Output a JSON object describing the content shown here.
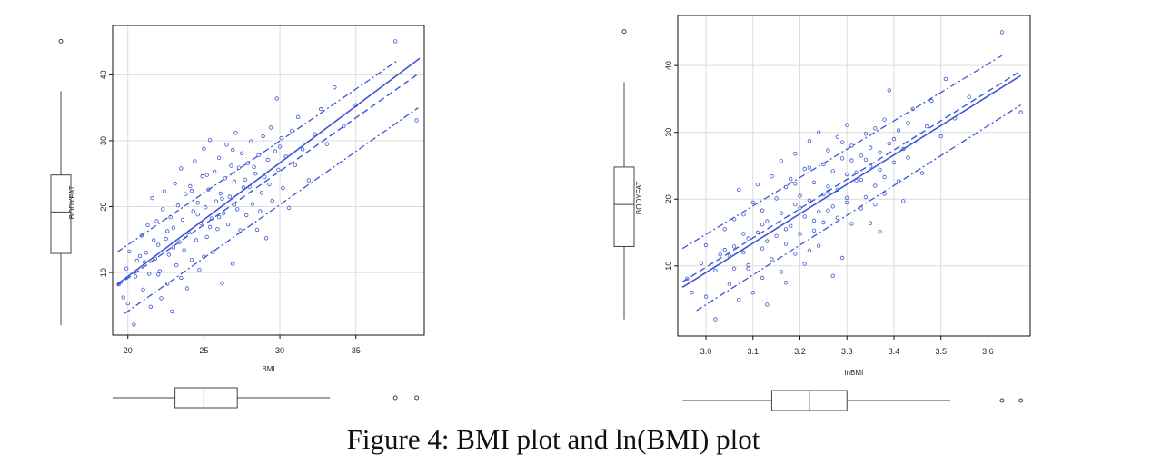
{
  "caption": "Figure 4: BMI plot and ln(BMI) plot",
  "colors": {
    "series": "#3b55d6",
    "box": "#444444",
    "grid": "#dcdcdc",
    "frame": "#111111"
  },
  "chart_data": [
    {
      "type": "scatter",
      "xlabel": "BMI",
      "ylabel": "BODYFAT",
      "xlim": [
        19,
        39.5
      ],
      "ylim": [
        0.5,
        47.5
      ],
      "xticks": [
        "20",
        "25",
        "30",
        "35"
      ],
      "yticks": [
        "10",
        "20",
        "30",
        "40"
      ],
      "grid": true,
      "fit_line": {
        "x": [
          19.3,
          39.2
        ],
        "y": [
          8.2,
          42.5
        ]
      },
      "smooth_line": {
        "x": [
          19.3,
          39.2
        ],
        "y": [
          8.0,
          40.3
        ]
      },
      "upper_band": {
        "x": [
          19.3,
          37.7
        ],
        "y": [
          13.1,
          42.1
        ]
      },
      "lower_band": {
        "x": [
          19.8,
          39.1
        ],
        "y": [
          3.8,
          35.0
        ]
      },
      "x_boxplot": {
        "whisker_low": 19.0,
        "q1": 23.1,
        "median": 25.0,
        "q3": 27.2,
        "whisker_high": 33.3,
        "outliers": [
          37.6,
          39.0
        ]
      },
      "y_boxplot": {
        "whisker_low": 2.0,
        "q1": 12.9,
        "median": 19.2,
        "q3": 24.8,
        "whisker_high": 37.5,
        "outliers": [
          45.1
        ]
      },
      "points": [
        [
          19.4,
          8.2
        ],
        [
          19.7,
          6.2
        ],
        [
          19.9,
          10.6
        ],
        [
          20.1,
          13.2
        ],
        [
          20.0,
          5.3
        ],
        [
          20.4,
          2.1
        ],
        [
          20.5,
          9.4
        ],
        [
          20.6,
          11.8
        ],
        [
          20.9,
          15.6
        ],
        [
          21.0,
          7.4
        ],
        [
          21.2,
          13.0
        ],
        [
          21.3,
          17.2
        ],
        [
          21.4,
          9.8
        ],
        [
          21.5,
          4.8
        ],
        [
          21.6,
          21.3
        ],
        [
          21.8,
          12.1
        ],
        [
          21.9,
          17.8
        ],
        [
          22.0,
          14.2
        ],
        [
          22.1,
          10.2
        ],
        [
          22.2,
          6.1
        ],
        [
          22.3,
          19.6
        ],
        [
          22.4,
          22.3
        ],
        [
          22.5,
          15.1
        ],
        [
          22.6,
          8.3
        ],
        [
          22.7,
          12.7
        ],
        [
          22.8,
          18.4
        ],
        [
          22.9,
          4.1
        ],
        [
          23.0,
          16.8
        ],
        [
          23.1,
          23.5
        ],
        [
          23.2,
          11.1
        ],
        [
          23.3,
          20.2
        ],
        [
          23.4,
          14.6
        ],
        [
          23.5,
          9.2
        ],
        [
          23.5,
          25.8
        ],
        [
          23.6,
          18.0
        ],
        [
          23.7,
          13.4
        ],
        [
          23.8,
          21.9
        ],
        [
          23.9,
          7.6
        ],
        [
          24.0,
          16.1
        ],
        [
          24.1,
          23.1
        ],
        [
          24.2,
          11.9
        ],
        [
          24.3,
          19.3
        ],
        [
          24.4,
          26.9
        ],
        [
          24.5,
          14.9
        ],
        [
          24.6,
          20.6
        ],
        [
          24.7,
          10.4
        ],
        [
          24.8,
          17.5
        ],
        [
          24.9,
          24.6
        ],
        [
          25.0,
          12.4
        ],
        [
          25.0,
          28.8
        ],
        [
          25.1,
          19.9
        ],
        [
          25.2,
          15.4
        ],
        [
          25.3,
          22.6
        ],
        [
          25.4,
          30.1
        ],
        [
          25.5,
          18.2
        ],
        [
          25.6,
          13.1
        ],
        [
          25.7,
          25.3
        ],
        [
          25.8,
          20.8
        ],
        [
          25.9,
          16.6
        ],
        [
          26.0,
          27.4
        ],
        [
          26.1,
          22.0
        ],
        [
          26.2,
          8.4
        ],
        [
          26.3,
          19.0
        ],
        [
          26.4,
          24.3
        ],
        [
          26.5,
          29.4
        ],
        [
          26.6,
          17.3
        ],
        [
          26.7,
          21.5
        ],
        [
          26.8,
          26.2
        ],
        [
          26.9,
          11.3
        ],
        [
          27.0,
          23.8
        ],
        [
          27.1,
          31.2
        ],
        [
          27.2,
          19.6
        ],
        [
          27.3,
          25.9
        ],
        [
          27.4,
          16.4
        ],
        [
          27.5,
          28.1
        ],
        [
          27.6,
          22.9
        ],
        [
          27.8,
          18.7
        ],
        [
          27.9,
          26.6
        ],
        [
          28.0,
          23.0
        ],
        [
          28.1,
          29.9
        ],
        [
          28.2,
          20.4
        ],
        [
          28.4,
          25.0
        ],
        [
          28.5,
          16.5
        ],
        [
          28.6,
          27.8
        ],
        [
          28.8,
          22.1
        ],
        [
          28.9,
          30.7
        ],
        [
          29.0,
          24.5
        ],
        [
          29.1,
          15.2
        ],
        [
          29.2,
          27.1
        ],
        [
          29.4,
          32.0
        ],
        [
          29.5,
          20.9
        ],
        [
          29.7,
          28.4
        ],
        [
          29.8,
          36.4
        ],
        [
          29.9,
          25.6
        ],
        [
          30.1,
          30.4
        ],
        [
          30.2,
          22.8
        ],
        [
          30.4,
          27.6
        ],
        [
          30.6,
          19.8
        ],
        [
          30.8,
          31.5
        ],
        [
          31.0,
          26.3
        ],
        [
          31.2,
          33.6
        ],
        [
          31.5,
          28.7
        ],
        [
          31.9,
          24.0
        ],
        [
          32.3,
          31.0
        ],
        [
          32.7,
          34.8
        ],
        [
          33.1,
          29.5
        ],
        [
          33.6,
          38.1
        ],
        [
          34.2,
          32.2
        ],
        [
          35.0,
          35.4
        ],
        [
          37.6,
          45.1
        ],
        [
          39.0,
          33.1
        ],
        [
          21.1,
          11.6
        ],
        [
          22.0,
          9.7
        ],
        [
          23.0,
          13.8
        ],
        [
          23.8,
          15.6
        ],
        [
          24.6,
          18.8
        ],
        [
          25.4,
          16.9
        ],
        [
          26.2,
          21.2
        ],
        [
          27.0,
          20.3
        ],
        [
          27.7,
          24.1
        ],
        [
          28.3,
          26.0
        ],
        [
          29.3,
          23.4
        ],
        [
          30.0,
          29.1
        ],
        [
          20.8,
          12.5
        ],
        [
          21.7,
          14.9
        ],
        [
          22.6,
          16.3
        ],
        [
          24.2,
          22.4
        ],
        [
          25.2,
          24.8
        ],
        [
          26.0,
          18.4
        ],
        [
          26.9,
          28.6
        ],
        [
          28.7,
          19.3
        ]
      ]
    },
    {
      "type": "scatter",
      "xlabel": "lnBMI",
      "ylabel": "BODYFAT",
      "xlim": [
        2.94,
        3.69
      ],
      "ylim": [
        -0.5,
        47.5
      ],
      "xticks": [
        "3.0",
        "3.1",
        "3.2",
        "3.3",
        "3.4",
        "3.5",
        "3.6"
      ],
      "yticks": [
        "10",
        "20",
        "30",
        "40"
      ],
      "grid": true,
      "fit_line": {
        "x": [
          2.95,
          3.67
        ],
        "y": [
          6.8,
          38.5
        ]
      },
      "smooth_line": {
        "x": [
          2.95,
          3.67
        ],
        "y": [
          7.6,
          39.2
        ]
      },
      "upper_band": {
        "x": [
          2.95,
          3.63
        ],
        "y": [
          12.6,
          41.5
        ]
      },
      "lower_band": {
        "x": [
          2.98,
          3.67
        ],
        "y": [
          3.3,
          34.1
        ]
      },
      "x_boxplot": {
        "whisker_low": 2.95,
        "q1": 3.14,
        "median": 3.22,
        "q3": 3.3,
        "whisker_high": 3.52,
        "outliers": [
          3.63,
          3.67
        ]
      },
      "y_boxplot": {
        "whisker_low": 2.0,
        "q1": 12.9,
        "median": 19.2,
        "q3": 24.8,
        "whisker_high": 37.5,
        "outliers": [
          45.1
        ]
      },
      "points": [
        [
          2.96,
          8.1
        ],
        [
          2.97,
          6.0
        ],
        [
          2.99,
          10.4
        ],
        [
          3.0,
          13.1
        ],
        [
          3.0,
          5.4
        ],
        [
          3.02,
          2.0
        ],
        [
          3.02,
          9.3
        ],
        [
          3.03,
          11.7
        ],
        [
          3.04,
          15.5
        ],
        [
          3.05,
          7.3
        ],
        [
          3.06,
          12.9
        ],
        [
          3.06,
          17.0
        ],
        [
          3.06,
          9.6
        ],
        [
          3.07,
          4.9
        ],
        [
          3.07,
          21.4
        ],
        [
          3.08,
          12.0
        ],
        [
          3.08,
          17.7
        ],
        [
          3.09,
          14.1
        ],
        [
          3.09,
          10.1
        ],
        [
          3.1,
          6.0
        ],
        [
          3.1,
          19.5
        ],
        [
          3.11,
          22.2
        ],
        [
          3.11,
          15.0
        ],
        [
          3.12,
          8.2
        ],
        [
          3.12,
          12.6
        ],
        [
          3.12,
          18.3
        ],
        [
          3.13,
          4.2
        ],
        [
          3.13,
          16.7
        ],
        [
          3.14,
          23.4
        ],
        [
          3.14,
          11.0
        ],
        [
          3.15,
          20.1
        ],
        [
          3.15,
          14.5
        ],
        [
          3.16,
          9.1
        ],
        [
          3.16,
          25.7
        ],
        [
          3.16,
          17.9
        ],
        [
          3.17,
          13.3
        ],
        [
          3.17,
          21.8
        ],
        [
          3.17,
          7.5
        ],
        [
          3.18,
          16.0
        ],
        [
          3.18,
          23.0
        ],
        [
          3.19,
          11.8
        ],
        [
          3.19,
          19.2
        ],
        [
          3.19,
          26.8
        ],
        [
          3.2,
          14.8
        ],
        [
          3.2,
          20.5
        ],
        [
          3.21,
          10.3
        ],
        [
          3.21,
          17.4
        ],
        [
          3.21,
          24.5
        ],
        [
          3.22,
          12.3
        ],
        [
          3.22,
          28.7
        ],
        [
          3.22,
          19.8
        ],
        [
          3.23,
          15.3
        ],
        [
          3.23,
          22.5
        ],
        [
          3.24,
          30.0
        ],
        [
          3.24,
          18.1
        ],
        [
          3.24,
          13.0
        ],
        [
          3.25,
          25.2
        ],
        [
          3.25,
          20.7
        ],
        [
          3.25,
          16.5
        ],
        [
          3.26,
          27.3
        ],
        [
          3.26,
          21.9
        ],
        [
          3.27,
          8.5
        ],
        [
          3.27,
          18.9
        ],
        [
          3.27,
          24.2
        ],
        [
          3.28,
          29.3
        ],
        [
          3.28,
          17.2
        ],
        [
          3.28,
          21.4
        ],
        [
          3.29,
          26.1
        ],
        [
          3.29,
          11.2
        ],
        [
          3.3,
          23.7
        ],
        [
          3.3,
          31.1
        ],
        [
          3.3,
          19.5
        ],
        [
          3.31,
          25.8
        ],
        [
          3.31,
          16.3
        ],
        [
          3.31,
          28.0
        ],
        [
          3.32,
          22.8
        ],
        [
          3.33,
          18.6
        ],
        [
          3.33,
          26.5
        ],
        [
          3.33,
          22.9
        ],
        [
          3.34,
          29.8
        ],
        [
          3.34,
          20.3
        ],
        [
          3.35,
          24.9
        ],
        [
          3.35,
          16.4
        ],
        [
          3.35,
          27.7
        ],
        [
          3.36,
          22.0
        ],
        [
          3.36,
          30.6
        ],
        [
          3.37,
          24.4
        ],
        [
          3.37,
          15.1
        ],
        [
          3.37,
          27.0
        ],
        [
          3.38,
          31.9
        ],
        [
          3.38,
          20.8
        ],
        [
          3.39,
          28.3
        ],
        [
          3.39,
          36.3
        ],
        [
          3.4,
          25.5
        ],
        [
          3.41,
          30.3
        ],
        [
          3.41,
          22.7
        ],
        [
          3.42,
          27.5
        ],
        [
          3.42,
          19.7
        ],
        [
          3.43,
          31.4
        ],
        [
          3.43,
          26.2
        ],
        [
          3.44,
          33.5
        ],
        [
          3.45,
          28.6
        ],
        [
          3.46,
          23.9
        ],
        [
          3.47,
          30.9
        ],
        [
          3.48,
          34.7
        ],
        [
          3.5,
          29.4
        ],
        [
          3.51,
          38.0
        ],
        [
          3.53,
          32.1
        ],
        [
          3.56,
          35.3
        ],
        [
          3.63,
          45.0
        ],
        [
          3.67,
          33.0
        ],
        [
          3.05,
          11.5
        ],
        [
          3.09,
          9.6
        ],
        [
          3.13,
          13.7
        ],
        [
          3.17,
          15.5
        ],
        [
          3.2,
          18.7
        ],
        [
          3.23,
          16.8
        ],
        [
          3.26,
          21.1
        ],
        [
          3.3,
          20.2
        ],
        [
          3.32,
          24.0
        ],
        [
          3.34,
          25.9
        ],
        [
          3.38,
          23.3
        ],
        [
          3.4,
          29.0
        ],
        [
          3.04,
          12.4
        ],
        [
          3.08,
          14.8
        ],
        [
          3.12,
          16.2
        ],
        [
          3.19,
          22.3
        ],
        [
          3.22,
          24.7
        ],
        [
          3.26,
          18.3
        ],
        [
          3.29,
          28.5
        ],
        [
          3.36,
          19.2
        ]
      ]
    }
  ]
}
